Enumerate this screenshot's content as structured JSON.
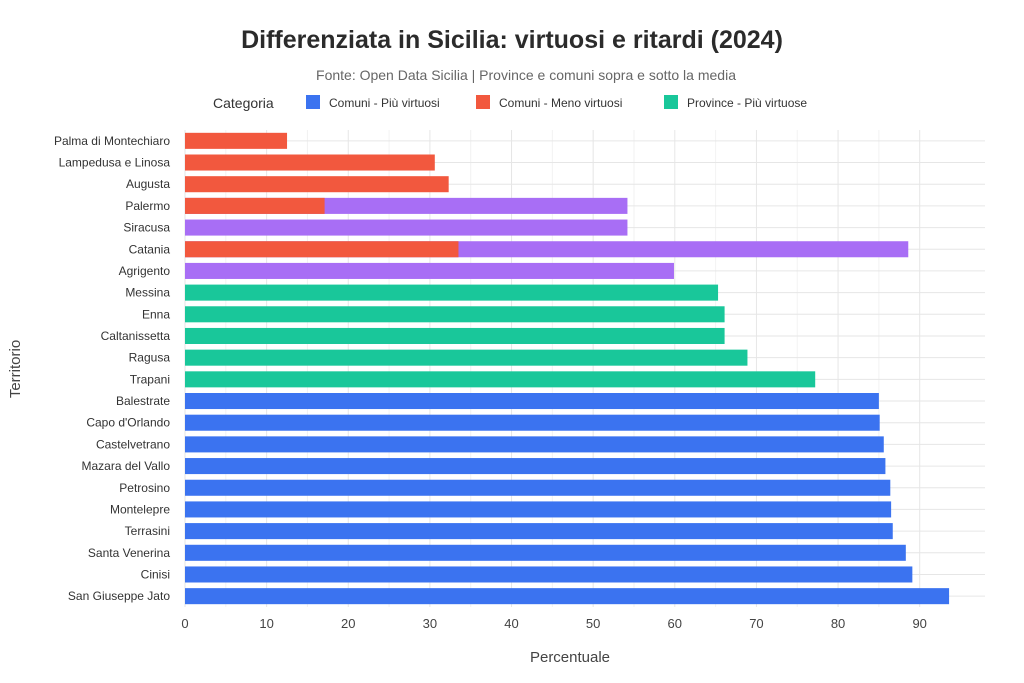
{
  "chart_data": {
    "type": "bar",
    "orientation": "horizontal",
    "title": "Differenziata in Sicilia: virtuosi e ritardi (2024)",
    "subtitle": "Fonte: Open Data Sicilia | Province e comuni sopra e sotto la media",
    "xlabel": "Percentuale",
    "ylabel": "Territorio",
    "xlim": [
      0,
      98
    ],
    "xticks": [
      0,
      10,
      20,
      30,
      40,
      50,
      60,
      70,
      80,
      90
    ],
    "grid": true,
    "legend": {
      "title": "Categoria",
      "position": "top",
      "entries": [
        {
          "name": "Comuni - Più virtuosi",
          "color": "#3b73f0"
        },
        {
          "name": "Comuni - Meno virtuosi",
          "color": "#f2583e"
        },
        {
          "name": "Province - Più virtuose",
          "color": "#19c79a"
        }
      ]
    },
    "extra_color": "#a86ef5",
    "categories": [
      "Palma di Montechiaro",
      "Lampedusa e Linosa",
      "Augusta",
      "Palermo",
      "Siracusa",
      "Catania",
      "Agrigento",
      "Messina",
      "Enna",
      "Caltanissetta",
      "Ragusa",
      "Trapani",
      "Balestrate",
      "Capo d'Orlando",
      "Castelvetrano",
      "Mazara del Vallo",
      "Petrosino",
      "Montelepre",
      "Terrasini",
      "Santa Venerina",
      "Cinisi",
      "San Giuseppe Jato"
    ],
    "series": [
      {
        "name": "Comuni - Più virtuosi",
        "color": "#3b73f0",
        "values": [
          null,
          null,
          null,
          null,
          null,
          null,
          null,
          null,
          null,
          null,
          null,
          null,
          85.0,
          85.1,
          85.6,
          85.8,
          86.4,
          86.5,
          86.7,
          88.3,
          89.1,
          93.6
        ]
      },
      {
        "name": "Comuni - Meno virtuosi",
        "color": "#f2583e",
        "values": [
          12.5,
          30.6,
          32.3,
          17.1,
          null,
          33.5,
          null,
          null,
          null,
          null,
          null,
          null,
          null,
          null,
          null,
          null,
          null,
          null,
          null,
          null,
          null,
          null
        ]
      },
      {
        "name": "Province - Più virtuose",
        "color": "#19c79a",
        "values": [
          null,
          null,
          null,
          null,
          null,
          null,
          null,
          65.3,
          66.1,
          66.1,
          68.9,
          77.2,
          null,
          null,
          null,
          null,
          null,
          null,
          null,
          null,
          null,
          null
        ]
      },
      {
        "color": "#a86ef5",
        "values": [
          null,
          null,
          null,
          54.2,
          54.2,
          88.6,
          59.9,
          null,
          null,
          null,
          null,
          null,
          null,
          null,
          null,
          null,
          null,
          null,
          null,
          null,
          null,
          null
        ]
      }
    ]
  }
}
